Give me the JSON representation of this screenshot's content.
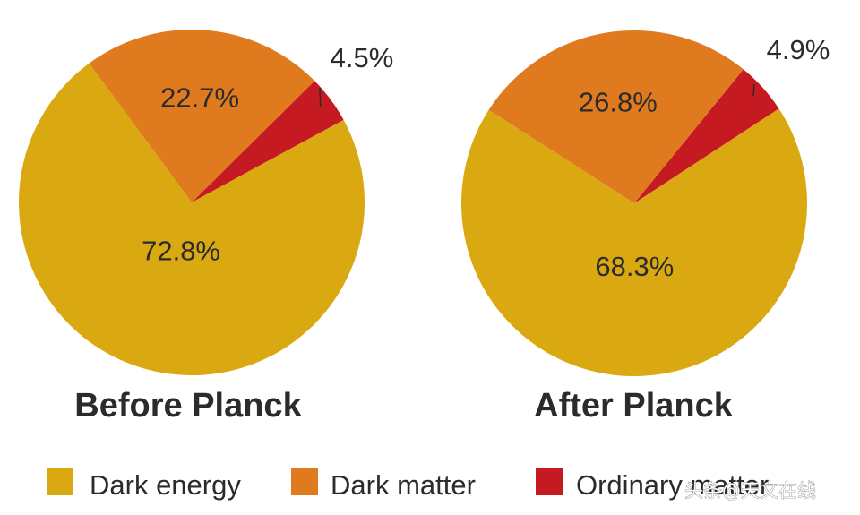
{
  "chart_data": [
    {
      "type": "pie",
      "title": "Before Planck",
      "categories": [
        "Ordinary matter",
        "Dark matter",
        "Dark energy"
      ],
      "values": [
        4.5,
        22.7,
        72.8
      ],
      "value_labels": [
        "4.5%",
        "22.7%",
        "72.8%"
      ]
    },
    {
      "type": "pie",
      "title": "After Planck",
      "categories": [
        "Ordinary matter",
        "Dark matter",
        "Dark energy"
      ],
      "values": [
        4.9,
        26.8,
        68.3
      ],
      "value_labels": [
        "4.9%",
        "26.8%",
        "68.3%"
      ]
    }
  ],
  "legend": [
    {
      "label": "Dark energy",
      "color": "#daa912"
    },
    {
      "label": "Dark matter",
      "color": "#df7a1f"
    },
    {
      "label": "Ordinary matter",
      "color": "#c61a22"
    }
  ],
  "colors": {
    "Dark energy": "#daa912",
    "Dark matter": "#df7a1f",
    "Ordinary matter": "#c61a22"
  },
  "watermark": "头条@天文在线"
}
